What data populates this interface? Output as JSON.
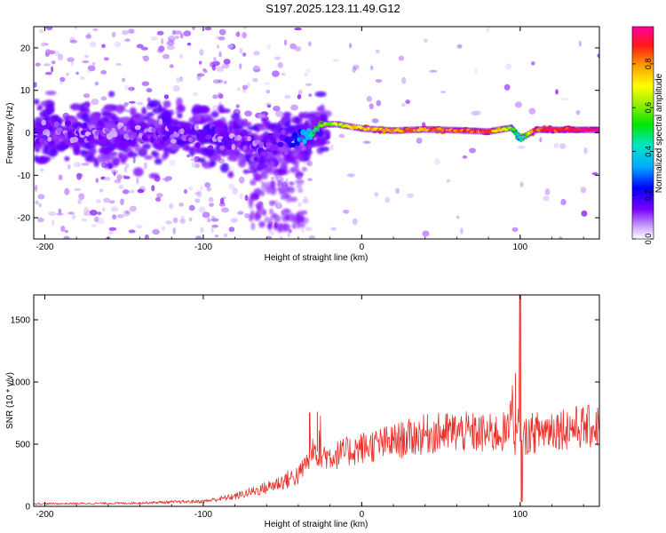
{
  "title": "S197.2025.123.11.49.G12",
  "chart_data": [
    {
      "type": "heatmap",
      "xlabel": "Height of straight line (km)",
      "ylabel": "Frequency (Hz)",
      "xlim": [
        -207,
        150
      ],
      "ylim": [
        -25,
        25
      ],
      "xticks": [
        -200,
        -100,
        0,
        100
      ],
      "yticks": [
        -20,
        -10,
        0,
        10,
        20
      ],
      "colorbar": {
        "label": "Normalized spectral amplitude",
        "range": [
          0,
          0.97
        ],
        "ticks": [
          0.0,
          0.2,
          0.4,
          0.6,
          0.8
        ],
        "tick_labels": [
          "0.0",
          "0.2",
          "0.4",
          "0.6",
          "0.8"
        ]
      },
      "ridge": {
        "x": [
          -200,
          -150,
          -100,
          -80,
          -65,
          -50,
          -35,
          -25,
          -15,
          0,
          20,
          40,
          60,
          80,
          95,
          100,
          110,
          130,
          150
        ],
        "freq": [
          0,
          0,
          0,
          -2,
          -4,
          -2,
          -1,
          2,
          2,
          1,
          0.5,
          0.8,
          0.6,
          0.3,
          1.2,
          -1.5,
          0.7,
          0.7,
          0.7
        ],
        "amplitude": [
          0.1,
          0.1,
          0.12,
          0.1,
          0.12,
          0.12,
          0.35,
          0.6,
          0.65,
          0.75,
          0.8,
          0.82,
          0.85,
          0.85,
          0.55,
          0.4,
          0.85,
          0.9,
          0.95
        ]
      }
    },
    {
      "type": "line",
      "xlabel": "Height of straight line (km)",
      "ylabel": "SNR (10 * v/v)",
      "xlim": [
        -207,
        150
      ],
      "ylim": [
        0,
        1700
      ],
      "xticks": [
        -200,
        -100,
        0,
        100
      ],
      "yticks": [
        0,
        500,
        1000,
        1500
      ],
      "series_color": "#e8302a",
      "envelope": {
        "x": [
          -207,
          -150,
          -100,
          -80,
          -60,
          -40,
          -30,
          -20,
          0,
          20,
          40,
          60,
          80,
          95,
          100,
          105,
          120,
          150
        ],
        "y": [
          20,
          25,
          40,
          80,
          150,
          250,
          450,
          400,
          470,
          520,
          580,
          600,
          580,
          600,
          520,
          580,
          630,
          640
        ]
      },
      "spikes": [
        {
          "x": -33,
          "y": 750
        },
        {
          "x": -28,
          "y": 760
        },
        {
          "x": 97,
          "y": 1070
        },
        {
          "x": 100,
          "y": 1700
        },
        {
          "x": 101,
          "y": 40
        }
      ]
    }
  ]
}
